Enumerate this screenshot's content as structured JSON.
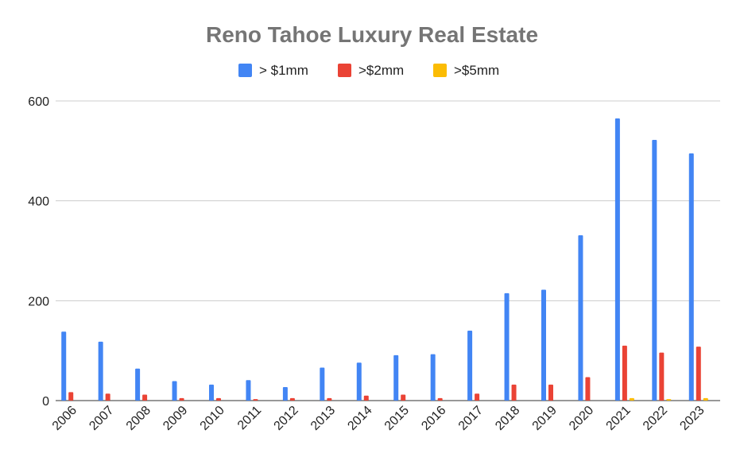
{
  "chart_data": {
    "type": "bar",
    "title": "Reno Tahoe Luxury Real Estate",
    "xlabel": "",
    "ylabel": "",
    "ylim": [
      0,
      600
    ],
    "yticks": [
      0,
      200,
      400,
      600
    ],
    "grid": true,
    "legend_position": "top",
    "categories": [
      "2006",
      "2007",
      "2008",
      "2009",
      "2010",
      "2011",
      "2012",
      "2013",
      "2014",
      "2015",
      "2016",
      "2017",
      "2018",
      "2019",
      "2020",
      "2021",
      "2022",
      "2023"
    ],
    "series": [
      {
        "name": "> $1mm",
        "color": "#4285f4",
        "values": [
          138,
          118,
          64,
          39,
          32,
          41,
          27,
          66,
          76,
          91,
          93,
          140,
          215,
          222,
          331,
          565,
          522,
          495
        ]
      },
      {
        "name": ">$2mm",
        "color": "#ea4335",
        "values": [
          17,
          14,
          12,
          5,
          5,
          3,
          5,
          5,
          10,
          12,
          5,
          14,
          32,
          32,
          47,
          110,
          96,
          108
        ]
      },
      {
        "name": ">$5mm",
        "color": "#fbbc04",
        "values": [
          0,
          0,
          0,
          0,
          0,
          0,
          0,
          0,
          0,
          0,
          0,
          0,
          0,
          0,
          0,
          5,
          3,
          5
        ]
      }
    ]
  }
}
